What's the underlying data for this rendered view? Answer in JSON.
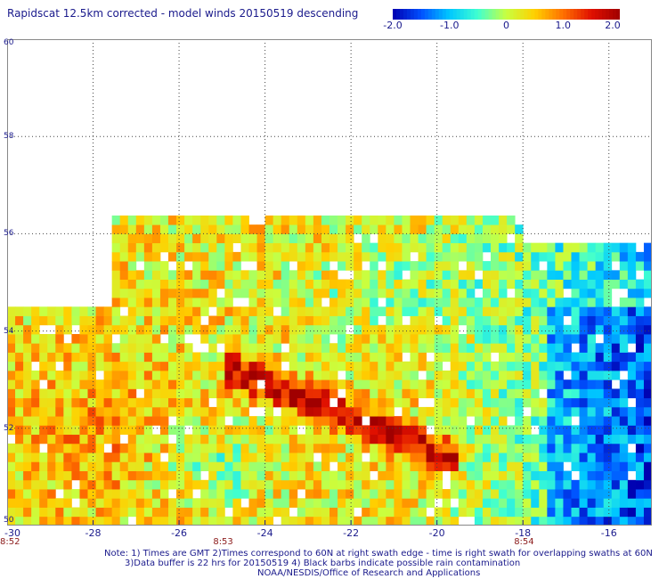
{
  "chart_data": {
    "type": "heatmap",
    "title": "Rapidscat 12.5km corrected - model winds 20150519 descending",
    "colorbar": {
      "min": -2.0,
      "max": 2.0,
      "tick_values": [
        -2.0,
        -1.0,
        0,
        1.0,
        2.0
      ],
      "tick_labels": [
        "-2.0",
        "-1.0",
        "0",
        "1.0",
        "2.0"
      ],
      "colors": [
        "#0000b0",
        "#0050ff",
        "#00c8ff",
        "#40ffd0",
        "#c8ff40",
        "#ffd000",
        "#ff7000",
        "#e01000",
        "#a00000"
      ]
    },
    "xlim": [
      -30,
      -15
    ],
    "ylim": [
      50,
      60
    ],
    "x_ticks": [
      -30,
      -28,
      -26,
      -24,
      -22,
      -20,
      -18,
      -16
    ],
    "x_tick_labels": [
      "-30",
      "-28",
      "-26",
      "-24",
      "-22",
      "-20",
      "-18",
      "-16"
    ],
    "y_ticks": [
      50,
      52,
      54,
      56,
      58,
      60
    ],
    "y_tick_labels": [
      "50",
      "52",
      "54",
      "56",
      "58",
      "60"
    ],
    "grid": true,
    "time_labels": [
      {
        "label": "8:52",
        "lon": -30
      },
      {
        "label": "8:53",
        "lon": -25
      },
      {
        "label": "8:54",
        "lon": -18
      }
    ],
    "field_summary": {
      "coverage": "swath with data north to ~54.4N west of -27.5, ~56.3N from -27.5 to -18, ~55.7N east of -18",
      "high_band": "values ~+1.5 to +2.0 along a band from (-24.2, 53.0) to (-20.5, 51.7)",
      "low_region": "values ~-1.0 to -2.0 east of -19, especially -17 to -15 between 50 and 54N"
    }
  },
  "notes": {
    "line1": "Note: 1) Times are GMT 2)Times correspond to 60N at right swath edge - time is right swath for overlapping swaths at 60N",
    "line2": "3)Data buffer is 22 hrs for 20150519 4) Black barbs indicate possible rain contamination",
    "line3": "NOAA/NESDIS/Office of Research and Applications"
  }
}
